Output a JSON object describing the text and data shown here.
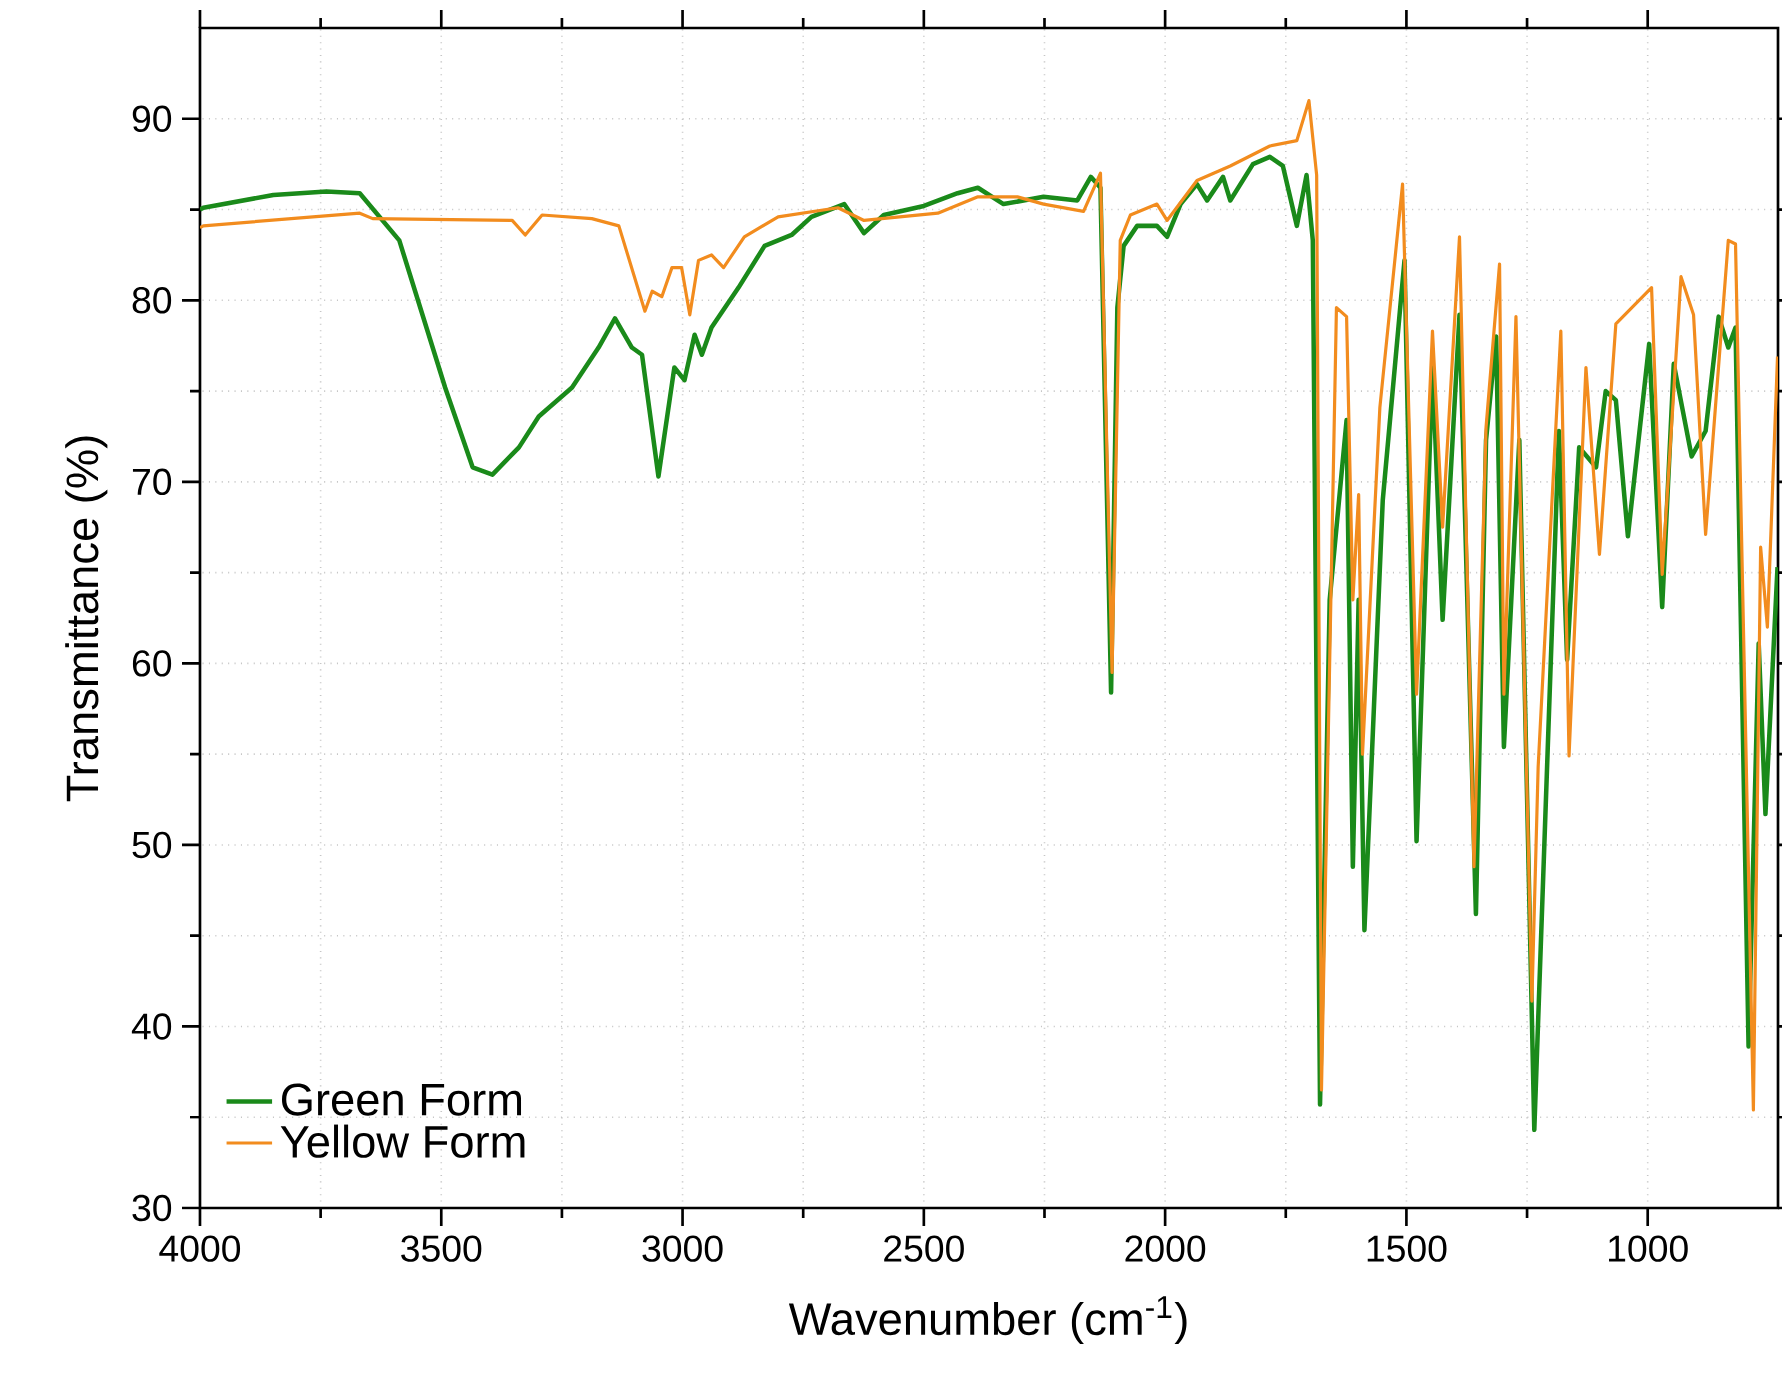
{
  "chart_data": {
    "type": "line",
    "xlabel": "Wavenumber (cm$^{-1}$)",
    "ylabel": "Transmittance (%)",
    "xlim": [
      4000,
      730
    ],
    "ylim": [
      30,
      95
    ],
    "xticks": [
      4000,
      3500,
      3000,
      2500,
      2000,
      1500,
      1000
    ],
    "yticks": [
      30,
      40,
      50,
      60,
      70,
      80,
      90
    ],
    "grid": true,
    "legend": "bottom left",
    "marker": "none",
    "line_style": "solid",
    "series": [
      {
        "name": "Green Form",
        "color": "#1a8a1a",
        "x": [
          4000,
          3993,
          3848,
          3738,
          3669,
          3587,
          3492,
          3435,
          3394,
          3339,
          3298,
          3229,
          3174,
          3140,
          3105,
          3084,
          3050,
          3017,
          2996,
          2975,
          2960,
          2940,
          2884,
          2830,
          2774,
          2733,
          2665,
          2624,
          2583,
          2500,
          2430,
          2388,
          2335,
          2252,
          2182,
          2154,
          2134,
          2112,
          2099,
          2086,
          2058,
          2017,
          1996,
          1968,
          1934,
          1913,
          1880,
          1865,
          1818,
          1783,
          1756,
          1727,
          1707,
          1694,
          1679,
          1659,
          1624,
          1611,
          1599,
          1587,
          1549,
          1504,
          1479,
          1446,
          1425,
          1390,
          1356,
          1335,
          1314,
          1298,
          1266,
          1235,
          1184,
          1167,
          1142,
          1107,
          1087,
          1066,
          1041,
          997,
          970,
          946,
          909,
          880,
          853,
          833,
          818,
          791,
          770,
          756,
          731
        ],
        "values": [
          85.0,
          85.1,
          85.8,
          86.0,
          85.9,
          83.3,
          75.2,
          70.8,
          70.4,
          71.9,
          73.6,
          75.2,
          77.4,
          79.0,
          77.4,
          77.0,
          70.3,
          76.3,
          75.6,
          78.1,
          77.0,
          78.5,
          80.7,
          83.0,
          83.6,
          84.6,
          85.3,
          83.7,
          84.7,
          85.2,
          85.9,
          86.2,
          85.3,
          85.7,
          85.5,
          86.8,
          86.2,
          58.4,
          79.6,
          83.0,
          84.1,
          84.1,
          83.5,
          85.3,
          86.4,
          85.5,
          86.8,
          85.5,
          87.5,
          87.9,
          87.4,
          84.1,
          86.9,
          83.3,
          35.7,
          63.5,
          73.4,
          48.8,
          63.5,
          45.3,
          69.0,
          82.2,
          50.2,
          76.3,
          62.4,
          79.2,
          46.2,
          72.3,
          78.0,
          55.4,
          72.3,
          34.3,
          72.8,
          60.2,
          71.9,
          70.8,
          75.0,
          74.5,
          67.0,
          77.6,
          63.1,
          76.5,
          71.4,
          72.8,
          79.1,
          77.4,
          78.5,
          38.9,
          61.1,
          51.7,
          65.3
        ]
      },
      {
        "name": "Yellow Form",
        "color": "#f28c1e",
        "x": [
          4000,
          3993,
          3766,
          3669,
          3642,
          3353,
          3326,
          3291,
          3188,
          3132,
          3078,
          3063,
          3043,
          3022,
          3002,
          2985,
          2967,
          2940,
          2915,
          2872,
          2802,
          2678,
          2624,
          2471,
          2388,
          2306,
          2252,
          2169,
          2134,
          2110,
          2093,
          2072,
          2017,
          1996,
          1934,
          1865,
          1783,
          1727,
          1702,
          1686,
          1676,
          1645,
          1624,
          1611,
          1599,
          1591,
          1555,
          1508,
          1479,
          1446,
          1425,
          1390,
          1360,
          1335,
          1307,
          1298,
          1273,
          1240,
          1227,
          1180,
          1163,
          1128,
          1100,
          1066,
          992,
          970,
          931,
          905,
          880,
          833,
          818,
          781,
          766,
          752,
          731
        ],
        "values": [
          84.0,
          84.1,
          84.6,
          84.8,
          84.5,
          84.4,
          83.6,
          84.7,
          84.5,
          84.1,
          79.4,
          80.5,
          80.2,
          81.8,
          81.8,
          79.2,
          82.2,
          82.5,
          81.8,
          83.5,
          84.6,
          85.1,
          84.4,
          84.8,
          85.7,
          85.7,
          85.3,
          84.9,
          87.0,
          59.5,
          83.3,
          84.7,
          85.3,
          84.4,
          86.6,
          87.4,
          88.5,
          88.8,
          91.0,
          86.9,
          36.5,
          79.6,
          79.1,
          63.5,
          69.3,
          55.0,
          74.1,
          86.4,
          58.3,
          78.3,
          67.5,
          83.5,
          48.8,
          73.0,
          82.0,
          58.3,
          79.1,
          41.4,
          54.3,
          78.3,
          54.9,
          76.3,
          66.0,
          78.7,
          80.7,
          64.9,
          81.3,
          79.2,
          67.1,
          83.3,
          83.1,
          35.4,
          66.4,
          62.0,
          76.9
        ]
      }
    ]
  }
}
